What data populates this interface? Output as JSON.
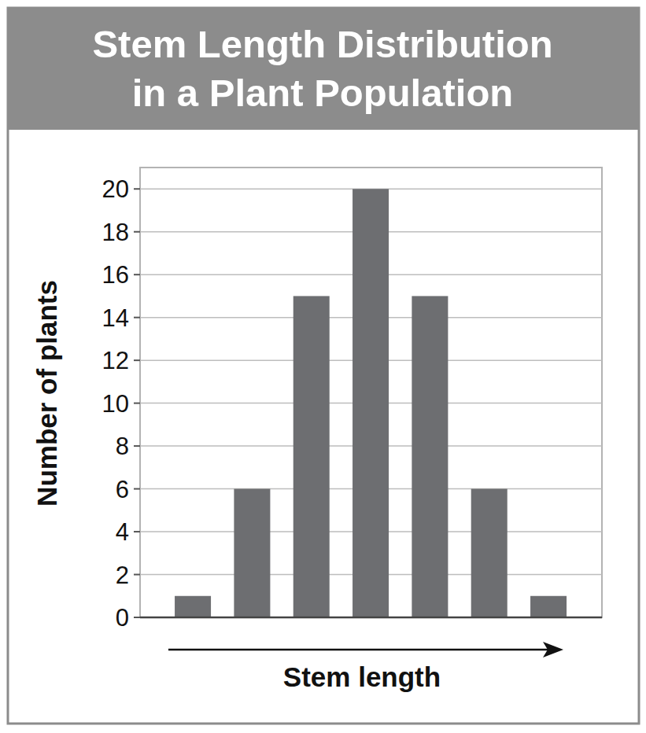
{
  "chart_data": {
    "type": "bar",
    "title": "Stem Length Distribution\nin a Plant Population",
    "x_label": "Stem length",
    "y_label": "Number of plants",
    "categories": [
      null,
      null,
      null,
      null,
      null,
      null,
      null
    ],
    "values": [
      1,
      6,
      15,
      20,
      15,
      6,
      1
    ],
    "color": "#6d6e71",
    "ylim": [
      0,
      21
    ],
    "yticks": [
      0,
      2,
      4,
      6,
      8,
      10,
      12,
      14,
      16,
      18,
      20
    ],
    "grid": true
  }
}
